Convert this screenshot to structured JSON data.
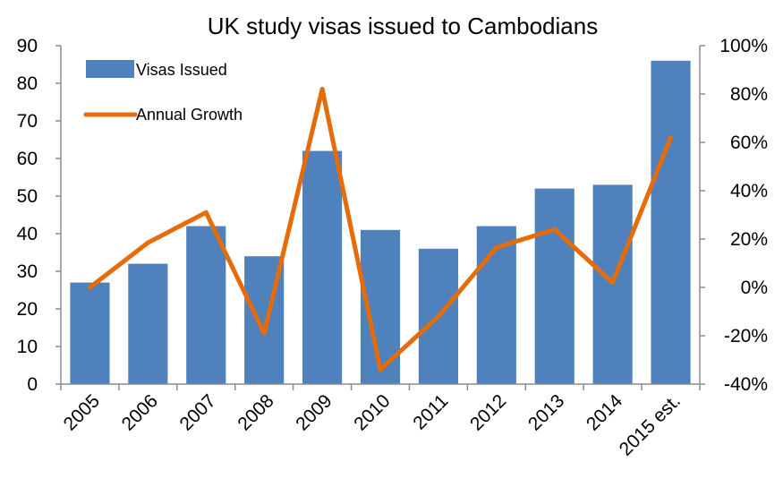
{
  "chart_data": {
    "type": "bar",
    "title": "UK study visas issued to Cambodians",
    "categories": [
      "2005",
      "2006",
      "2007",
      "2008",
      "2009",
      "2010",
      "2011",
      "2012",
      "2013",
      "2014",
      "2015 est."
    ],
    "series": [
      {
        "name": "Visas Issued",
        "type": "bar",
        "axis": "left",
        "color": "#4F81BD",
        "values": [
          27,
          32,
          42,
          34,
          62,
          41,
          36,
          42,
          52,
          53,
          86
        ]
      },
      {
        "name": "Annual Growth",
        "type": "line",
        "axis": "right",
        "color": "#E46C0A",
        "values": [
          0,
          18.5,
          31,
          -19,
          82,
          -34,
          -12,
          16.5,
          24,
          2,
          62
        ]
      }
    ],
    "y_left": {
      "min": 0,
      "max": 90,
      "ticks": [
        "0",
        "10",
        "20",
        "30",
        "40",
        "50",
        "60",
        "70",
        "80",
        "90"
      ]
    },
    "y_right": {
      "min": -40,
      "max": 100,
      "ticks": [
        "-40%",
        "-20%",
        "0%",
        "20%",
        "40%",
        "60%",
        "80%",
        "100%"
      ]
    },
    "grid": false,
    "legend": "top-left"
  }
}
